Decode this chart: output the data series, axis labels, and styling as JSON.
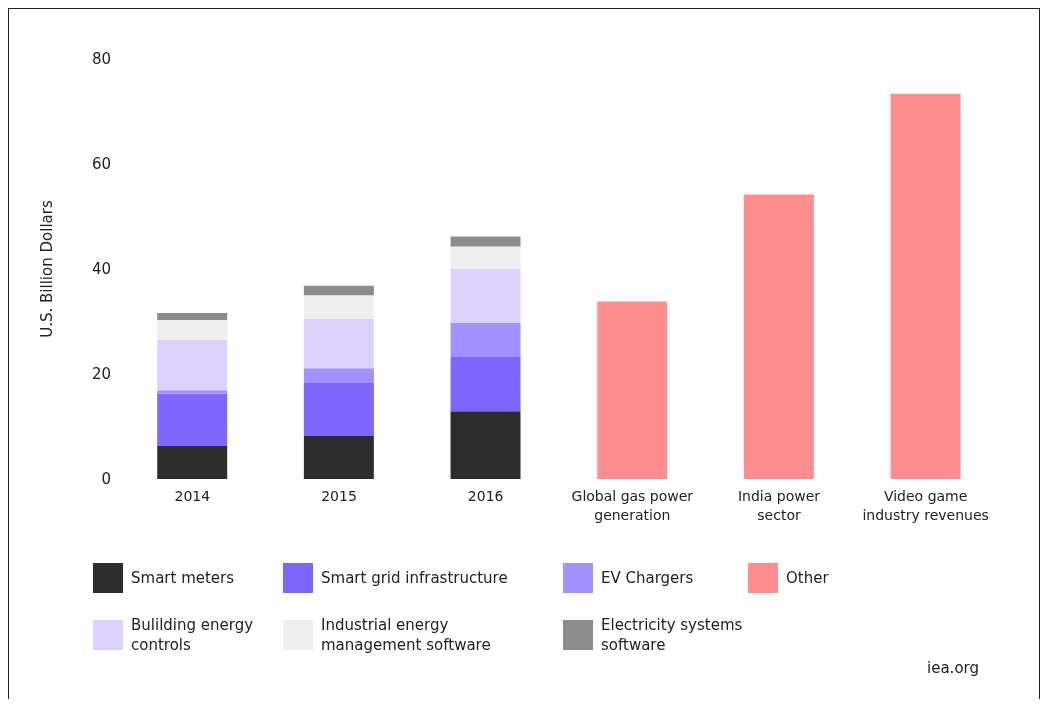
{
  "chart_data": {
    "type": "bar",
    "stacked": true,
    "ylabel": "U.S. Billion Dollars",
    "categories": [
      "2014",
      "2015",
      "2016",
      "Global gas power generation",
      "India power sector",
      "Video game industry revenues"
    ],
    "series": [
      {
        "name": "Smart meters",
        "color": "#2d2d2d",
        "values": [
          6.3,
          8.2,
          12.9,
          null,
          null,
          null
        ]
      },
      {
        "name": "Smart grid infrastructure",
        "color": "#7f66ff",
        "values": [
          10.0,
          10.1,
          10.5,
          null,
          null,
          null
        ]
      },
      {
        "name": "EV Chargers",
        "color": "#a391ff",
        "values": [
          0.6,
          2.8,
          6.3,
          null,
          null,
          null
        ]
      },
      {
        "name": "Other",
        "color": "#ff8f8f",
        "values": [
          null,
          null,
          null,
          33.8,
          54.2,
          73.4
        ]
      },
      {
        "name": "Bulilding energy controls",
        "color": "#ddd1ff",
        "values": [
          9.6,
          9.4,
          10.3,
          null,
          null,
          null
        ]
      },
      {
        "name": "Industrial energy management software",
        "color": "#eeeeee",
        "values": [
          3.8,
          4.5,
          4.3,
          null,
          null,
          null
        ]
      },
      {
        "name": "Electricity systems software",
        "color": "#8c8c8c",
        "values": [
          1.3,
          1.8,
          1.9,
          null,
          null,
          null
        ]
      }
    ],
    "ylim": [
      0,
      80
    ],
    "yticks": [
      0,
      20,
      40,
      60,
      80
    ],
    "grid": false,
    "legend": "bottom",
    "annotations": [
      "iea.org"
    ]
  }
}
